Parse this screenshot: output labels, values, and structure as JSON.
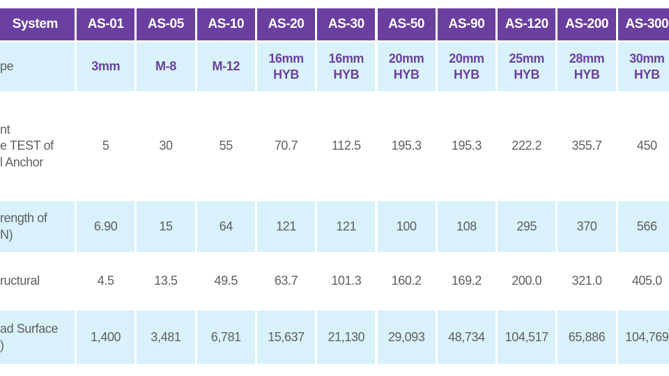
{
  "table": {
    "header": [
      "System",
      "AS-01",
      "AS-05",
      "AS-10",
      "AS-20",
      "AS-30",
      "AS-50",
      "AS-90",
      "AS-120",
      "AS-200",
      "AS-300"
    ],
    "rows": [
      [
        "pe",
        "3mm",
        "M-8",
        "M-12",
        "16mm\nHYB",
        "16mm\nHYB",
        "20mm\nHYB",
        "20mm\nHYB",
        "25mm\nHYB",
        "28mm\nHYB",
        "30mm\nHYB"
      ],
      [
        "nt\ne TEST of\nl Anchor\n ",
        "5",
        "30",
        "55",
        "70.7",
        "112.5",
        "195.3",
        "195.3",
        "222.2",
        "355.7",
        "450"
      ],
      [
        "rength of\nN)",
        "6.90",
        "15",
        "64",
        "121",
        "121",
        "100",
        "108",
        "295",
        "370",
        "566"
      ],
      [
        "ructural\n ",
        "4.5",
        "13.5",
        "49.5",
        "63.7",
        "101.3",
        "160.2",
        "169.2",
        "200.0",
        "321.0",
        "405.0"
      ],
      [
        "ad Surface\n)",
        "1,400",
        "3,481",
        "6,781",
        "15,637",
        "21,130",
        "29,093",
        "48,734",
        "104,517",
        "65,886",
        "104,769"
      ]
    ]
  }
}
